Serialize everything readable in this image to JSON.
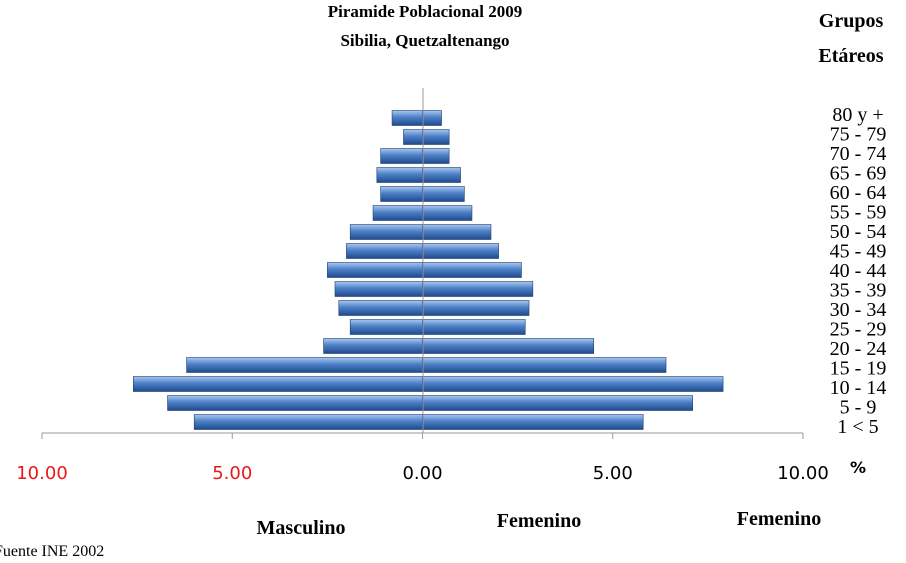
{
  "chart_data": {
    "type": "bar",
    "orientation": "horizontal",
    "title": "Piramide Poblacional  2009",
    "subtitle": "Sibilia, Quetzaltenango",
    "legend_header": [
      "Grupos",
      "Etáreos"
    ],
    "categories": [
      "1 < 5",
      "5 - 9",
      "10 - 14",
      "15 - 19",
      "20 - 24",
      "25 - 29",
      "30 - 34",
      "35 - 39",
      "40 - 44",
      "45 - 49",
      "50 - 54",
      "55 - 59",
      "60 - 64",
      "65 - 69",
      "70 - 74",
      "75 - 79",
      "80 y +"
    ],
    "series": [
      {
        "name": "Masculino",
        "values": [
          6.0,
          6.7,
          7.6,
          6.2,
          2.6,
          1.9,
          2.2,
          2.3,
          2.5,
          2.0,
          1.9,
          1.3,
          1.1,
          1.2,
          1.1,
          0.5,
          0.8
        ]
      },
      {
        "name": "Femenino",
        "values": [
          5.8,
          7.1,
          7.9,
          6.4,
          4.5,
          2.7,
          2.8,
          2.9,
          2.6,
          2.0,
          1.8,
          1.3,
          1.1,
          1.0,
          0.7,
          0.7,
          0.5
        ]
      }
    ],
    "x_tick_labels": [
      "10.00",
      "5.00",
      "0.00",
      "5.00",
      "10.00"
    ],
    "x_unit": "%",
    "xlim": [
      -10,
      10
    ],
    "axis_labels": [
      "Masculino",
      "Femenino",
      "Femenino"
    ],
    "source": "Fuente INE 2002",
    "colors": {
      "bar": "#4a7ec6",
      "bar_dark": "#1d3f74",
      "bar_light": "#9ec0ea",
      "tick_neg": "#e8191b",
      "axis": "#999999"
    }
  }
}
